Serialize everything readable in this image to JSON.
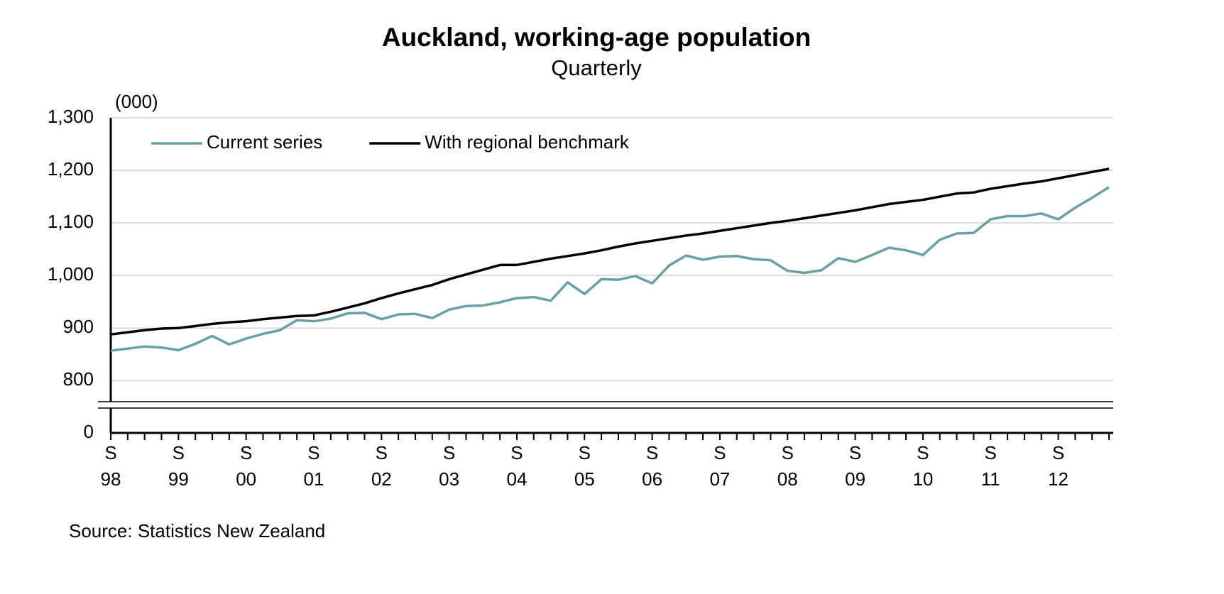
{
  "chart_data": {
    "type": "line",
    "title": "Auckland, working-age population",
    "subtitle": "Quarterly",
    "y_unit": "(000)",
    "source": "Source: Statistics New Zealand",
    "categories": [
      "S\n98",
      null,
      null,
      null,
      "S\n99",
      null,
      null,
      null,
      "S\n00",
      null,
      null,
      null,
      "S\n01",
      null,
      null,
      null,
      "S\n02",
      null,
      null,
      null,
      "S\n03",
      null,
      null,
      null,
      "S\n04",
      null,
      null,
      null,
      "S\n05",
      null,
      null,
      null,
      "S\n06",
      null,
      null,
      null,
      "S\n07",
      null,
      null,
      null,
      "S\n08",
      null,
      null,
      null,
      "S\n09",
      null,
      null,
      null,
      "S\n10",
      null,
      null,
      null,
      "S\n11",
      null,
      null,
      null,
      "S\n12",
      null,
      null,
      null
    ],
    "series": [
      {
        "name": "Current series",
        "color": "#6a9fa3",
        "values": [
          857,
          861,
          865,
          863,
          858,
          870,
          885,
          869,
          880,
          889,
          896,
          915,
          913,
          918,
          928,
          929,
          917,
          926,
          927,
          919,
          935,
          942,
          943,
          949,
          957,
          959,
          952,
          987,
          965,
          993,
          992,
          999,
          985,
          1019,
          1038,
          1030,
          1036,
          1037,
          1031,
          1029,
          1009,
          1005,
          1010,
          1033,
          1026,
          1039,
          1053,
          1048,
          1039,
          1068,
          1080,
          1081,
          1107,
          1113,
          1113,
          1118,
          1107,
          1129,
          1148,
          1168
        ]
      },
      {
        "name": "With regional benchmark",
        "color": "#000000",
        "values": [
          888,
          892,
          896,
          899,
          900,
          904,
          908,
          911,
          913,
          917,
          920,
          923,
          924,
          931,
          939,
          947,
          957,
          966,
          974,
          982,
          993,
          1002,
          1011,
          1020,
          1020,
          1026,
          1032,
          1037,
          1042,
          1048,
          1055,
          1061,
          1066,
          1071,
          1076,
          1080,
          1085,
          1090,
          1095,
          1100,
          1104,
          1109,
          1114,
          1119,
          1124,
          1130,
          1136,
          1140,
          1144,
          1150,
          1156,
          1158,
          1165,
          1170,
          1175,
          1179,
          1185,
          1191,
          1197,
          1203
        ]
      }
    ],
    "ylim": [
      760,
      1300
    ],
    "yticks": [
      {
        "value": 0,
        "label": "0"
      },
      800,
      900,
      {
        "value": 1000,
        "label": "1,000"
      },
      {
        "value": 1100,
        "label": "1,100"
      },
      {
        "value": 1200,
        "label": "1,200"
      },
      {
        "value": 1300,
        "label": "1,300"
      }
    ],
    "axis_break": true,
    "grid": true,
    "legend": "upper left"
  }
}
